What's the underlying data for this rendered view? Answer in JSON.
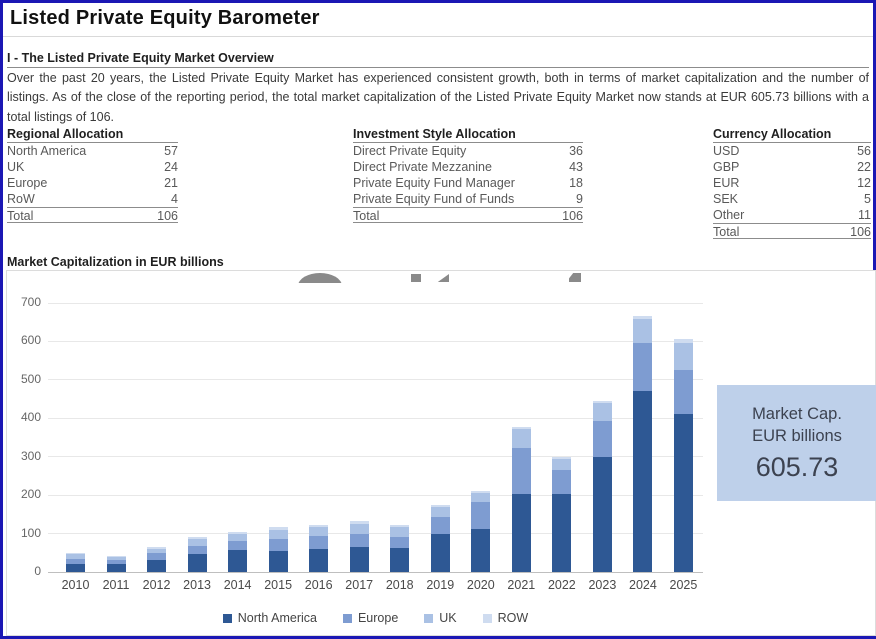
{
  "page": {
    "title": "Listed Private Equity Barometer"
  },
  "overview": {
    "heading": "I - The Listed Private Equity Market Overview",
    "body": "Over the past 20 years, the Listed Private Equity Market has experienced consistent growth, both in terms of market capitalization and the number of listings. As of the close of the reporting period, the total market capitalization of the Listed Private Equity Market now stands at EUR 605.73 billions with a total listings of 106."
  },
  "tables": [
    {
      "title": "Regional Allocation",
      "rows": [
        {
          "label": "North America",
          "value": "57"
        },
        {
          "label": "UK",
          "value": "24"
        },
        {
          "label": "Europe",
          "value": "21"
        },
        {
          "label": "RoW",
          "value": "4"
        }
      ],
      "total": {
        "label": "Total",
        "value": "106"
      }
    },
    {
      "title": "Investment Style Allocation",
      "rows": [
        {
          "label": "Direct Private Equity",
          "value": "36"
        },
        {
          "label": "Direct Private Mezzanine",
          "value": "43"
        },
        {
          "label": "Private Equity Fund Manager",
          "value": "18"
        },
        {
          "label": "Private Equity Fund of Funds",
          "value": "9"
        }
      ],
      "total": {
        "label": "Total",
        "value": "106"
      }
    },
    {
      "title": "Currency Allocation",
      "rows": [
        {
          "label": "USD",
          "value": "56"
        },
        {
          "label": "GBP",
          "value": "22"
        },
        {
          "label": "EUR",
          "value": "12"
        },
        {
          "label": "SEK",
          "value": "5"
        },
        {
          "label": "Other",
          "value": "11"
        }
      ],
      "total": {
        "label": "Total",
        "value": "106"
      }
    }
  ],
  "chart_section": {
    "heading": "Market Capitalization in EUR billions"
  },
  "callout": {
    "line1": "Market Cap.",
    "line2": "EUR billions",
    "value": "605.73"
  },
  "chart_data": {
    "type": "bar",
    "stacked": true,
    "title": "Market Capitalization in EUR billions",
    "categories": [
      "2010",
      "2011",
      "2012",
      "2013",
      "2014",
      "2015",
      "2016",
      "2017",
      "2018",
      "2019",
      "2020",
      "2021",
      "2022",
      "2023",
      "2024",
      "2025"
    ],
    "series": [
      {
        "name": "North America",
        "color": "#2e5894",
        "values": [
          20,
          20,
          32,
          47,
          57,
          55,
          60,
          64,
          62,
          100,
          112,
          202,
          202,
          298,
          472,
          410
        ]
      },
      {
        "name": "Europe",
        "color": "#7e9cd1",
        "values": [
          14,
          11,
          17,
          22,
          24,
          31,
          35,
          36,
          28,
          42,
          70,
          121,
          63,
          94,
          124,
          117
        ]
      },
      {
        "name": "UK",
        "color": "#aac1e4",
        "values": [
          12,
          9,
          11,
          16,
          17,
          24,
          22,
          26,
          27,
          27,
          24,
          48,
          29,
          48,
          62,
          70
        ]
      },
      {
        "name": "ROW",
        "color": "#cfdcf0",
        "values": [
          4,
          3,
          4,
          5,
          5,
          6,
          6,
          7,
          6,
          6,
          6,
          6,
          6,
          6,
          8,
          8.73
        ]
      }
    ],
    "totals": [
      50,
      43,
      64,
      90,
      103,
      116,
      123,
      133,
      123,
      175,
      212,
      377,
      300,
      446,
      666,
      605.73
    ],
    "xlabel": "",
    "ylabel": "",
    "ylim": [
      0,
      700
    ],
    "yticks": [
      0,
      100,
      200,
      300,
      400,
      500,
      600,
      700
    ],
    "grid": true,
    "legend_position": "bottom"
  },
  "colors": {
    "page_border": "#1b17b4",
    "callout_bg": "#bed0ea",
    "gridline": "#e8e8e8",
    "watermark": "#8a8a8a"
  }
}
